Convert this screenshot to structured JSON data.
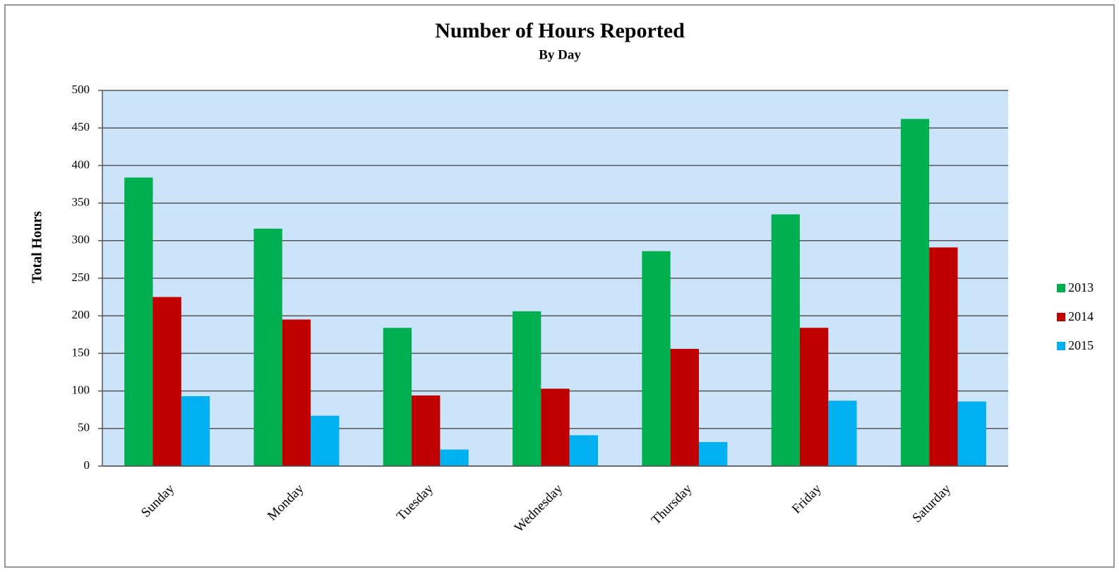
{
  "chart_data": {
    "type": "bar",
    "title": "Number of Hours Reported",
    "subtitle": "By Day",
    "y_label": "Total Hours",
    "categories": [
      "Sunday",
      "Monday",
      "Tuesday",
      "Wednesday",
      "Thursday",
      "Friday",
      "Saturday"
    ],
    "series": [
      {
        "name": "2013",
        "color": "#00b050",
        "values": [
          384,
          316,
          184,
          206,
          286,
          335,
          462
        ]
      },
      {
        "name": "2014",
        "color": "#c00000",
        "values": [
          225,
          195,
          94,
          103,
          156,
          184,
          291
        ]
      },
      {
        "name": "2015",
        "color": "#00b0f0",
        "values": [
          93,
          67,
          22,
          41,
          32,
          87,
          86
        ]
      }
    ],
    "ylim": [
      0,
      500
    ],
    "yticks": [
      0,
      50,
      100,
      150,
      200,
      250,
      300,
      350,
      400,
      450,
      500
    ],
    "grid": true,
    "legend": "right"
  }
}
